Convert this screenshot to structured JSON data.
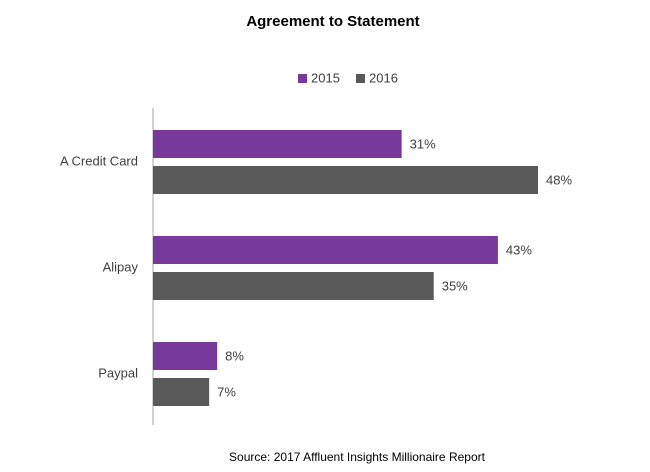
{
  "chart_data": {
    "type": "bar",
    "orientation": "horizontal",
    "title": "Agreement to Statement",
    "source": "Source: 2017 Affluent Insights Millionaire Report",
    "categories": [
      "A Credit Card",
      "Alipay",
      "Paypal"
    ],
    "series": [
      {
        "name": "2015",
        "color": "#773a9b",
        "values": [
          31,
          43,
          8
        ],
        "value_labels": [
          "31%",
          "43%",
          "8%"
        ]
      },
      {
        "name": "2016",
        "color": "#595959",
        "values": [
          48,
          35,
          7
        ],
        "value_labels": [
          "48%",
          "35%",
          "7%"
        ]
      }
    ],
    "legend": "top"
  }
}
